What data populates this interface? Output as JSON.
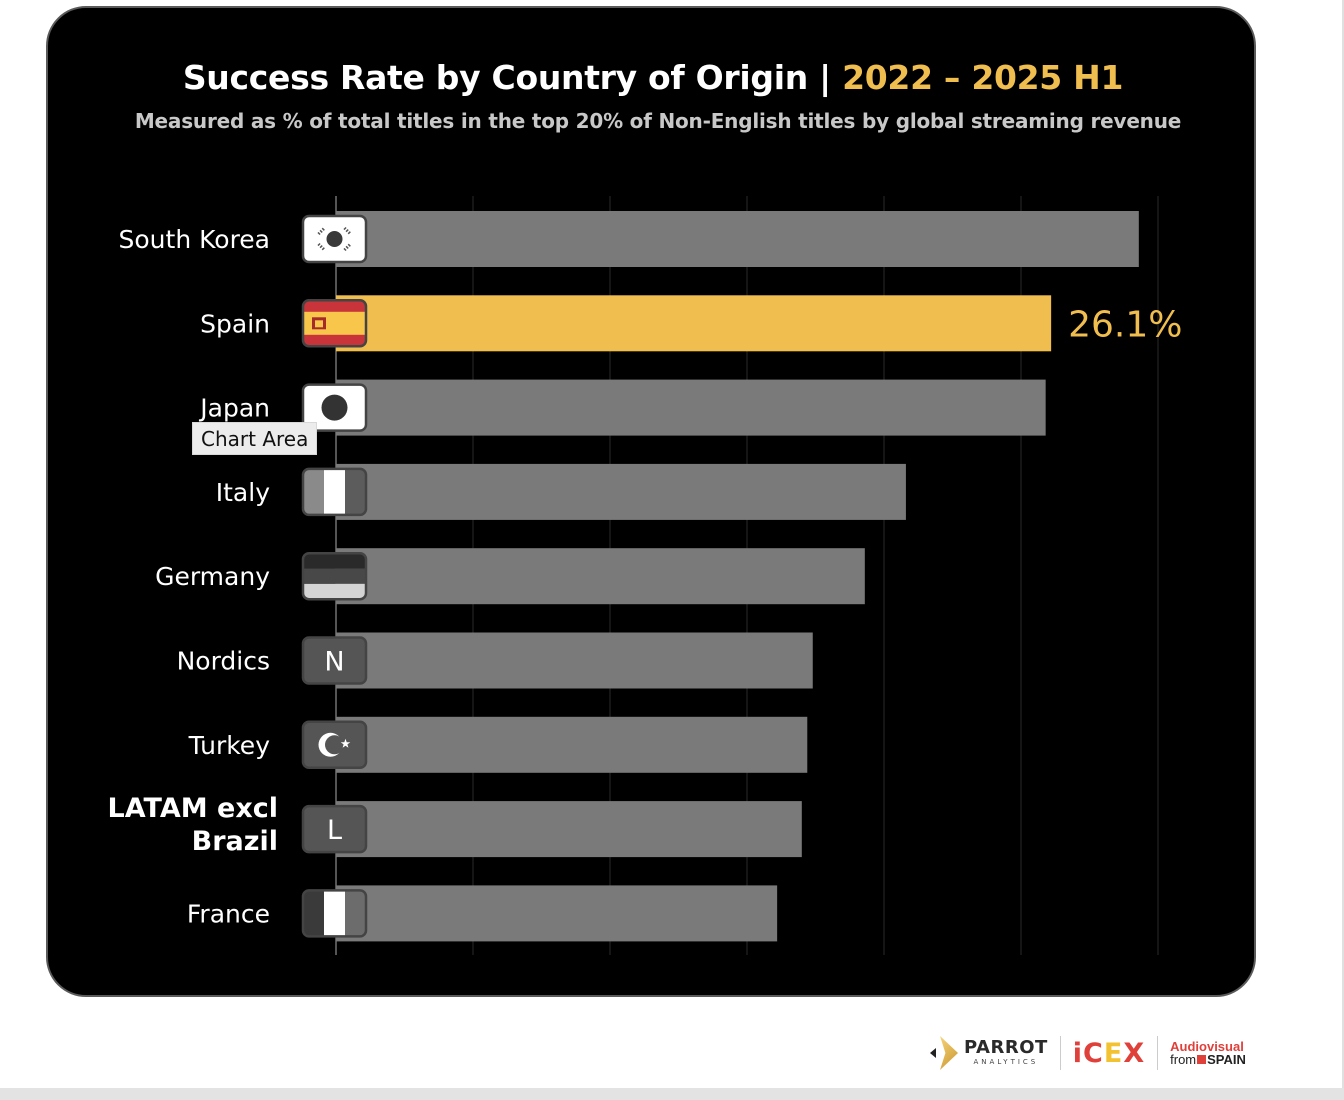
{
  "chart_data": {
    "type": "bar",
    "orientation": "horizontal",
    "title": "Success Rate by Country of Origin |",
    "title_accent": "2022 – 2025 H1",
    "subtitle": "Measured as % of total titles  in the top 20% of Non-English titles by global streaming revenue",
    "categories": [
      "South Korea",
      "Spain",
      "Japan",
      "Italy",
      "Germany",
      "Nordics",
      "Turkey",
      "LATAM excl Brazil",
      "France"
    ],
    "values": [
      29.3,
      26.1,
      25.9,
      20.8,
      19.3,
      17.4,
      17.2,
      17.0,
      16.1
    ],
    "highlight_index": 1,
    "data_labels": [
      null,
      "26.1%",
      null,
      null,
      null,
      null,
      null,
      null,
      null
    ],
    "xlabel": "",
    "ylabel": "",
    "xlim": [
      0,
      30
    ],
    "gridlines": [
      0,
      5,
      10,
      15,
      20,
      25,
      30
    ],
    "grid": true,
    "units": "%",
    "colors": {
      "default": "#7a7a7a",
      "highlight": "#f0bd4f",
      "background": "#000000",
      "grid": "#2a2a2a"
    }
  },
  "badges": [
    {
      "icon": "south-korea-flag-icon",
      "type": "korea"
    },
    {
      "icon": "spain-flag-icon",
      "type": "spain"
    },
    {
      "icon": "japan-flag-icon",
      "type": "japan"
    },
    {
      "icon": "italy-flag-icon",
      "type": "tricolor-v",
      "colors": [
        "#8a8a8a",
        "#ffffff",
        "#5c5c5c"
      ]
    },
    {
      "icon": "germany-flag-icon",
      "type": "tricolor-h",
      "colors": [
        "#2a2a2a",
        "#484848",
        "#d4d4d4"
      ]
    },
    {
      "icon": "nordics-letter-icon",
      "type": "letter",
      "text": "N"
    },
    {
      "icon": "turkey-flag-icon",
      "type": "turkey"
    },
    {
      "icon": "latam-letter-icon",
      "type": "letter",
      "text": "L"
    },
    {
      "icon": "france-flag-icon",
      "type": "tricolor-v",
      "colors": [
        "#3a3a3a",
        "#ffffff",
        "#6c6c6c"
      ]
    }
  ],
  "tooltip": "Chart Area",
  "footer": {
    "parrot": "PARROT",
    "parrot_sub": "ANALYTICS",
    "icex_a": "iC",
    "icex_b": "E",
    "icex_c": "X",
    "avs_top": "Audiovisual",
    "avs_from": "from",
    "avs_spain": "SPAIN"
  }
}
